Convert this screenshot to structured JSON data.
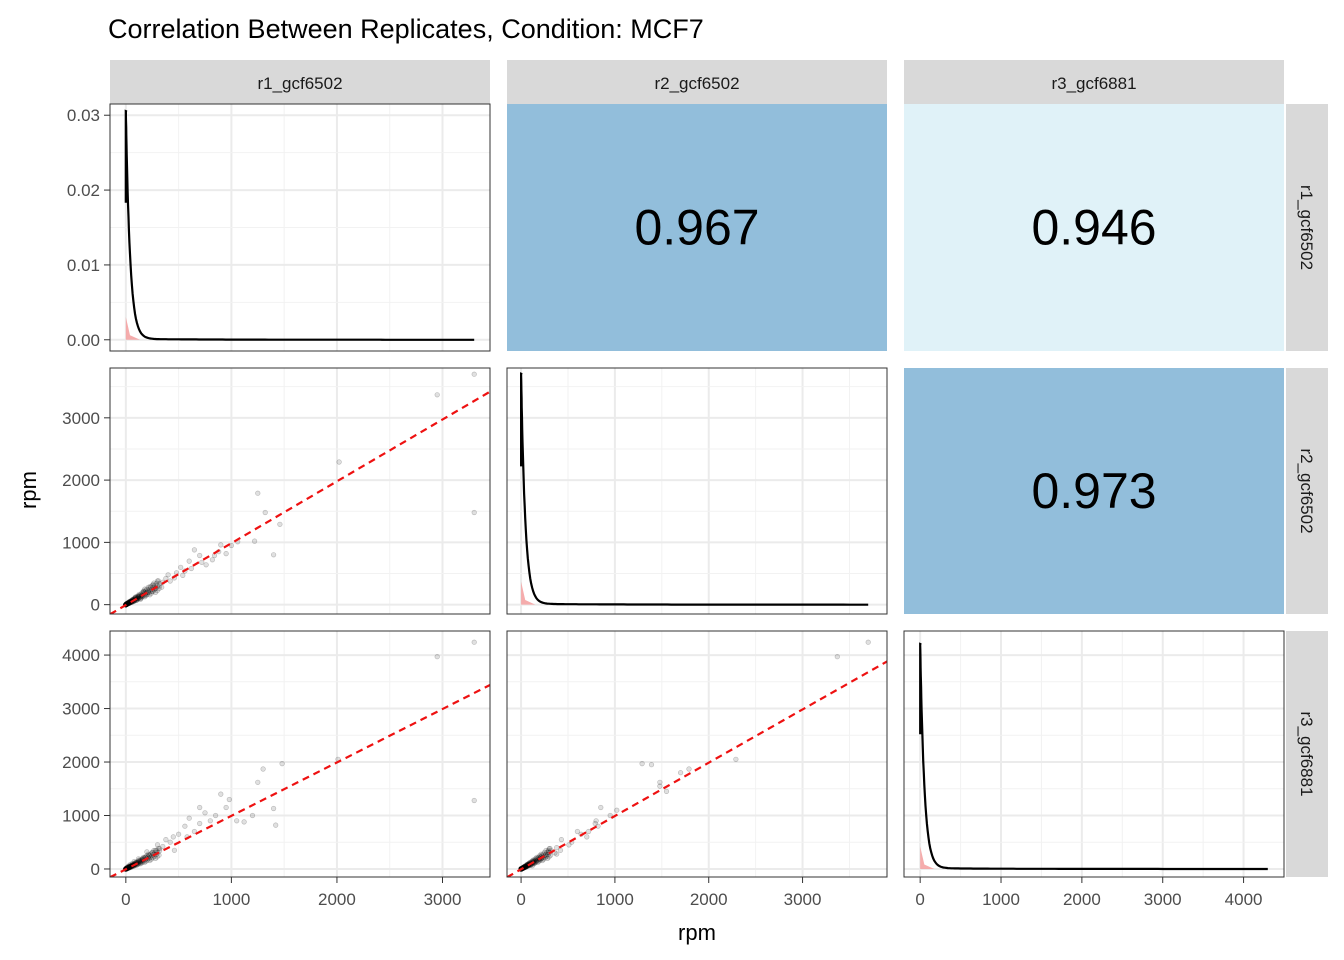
{
  "chart_data": {
    "type": "scatter-matrix",
    "title": "Correlation Between Replicates, Condition: MCF7",
    "xlabel": "rpm",
    "ylabel": "rpm",
    "columns": [
      "r1_gcf6502",
      "r2_gcf6502",
      "r3_gcf6881"
    ],
    "rows": [
      "r1_gcf6502",
      "r2_gcf6502",
      "r3_gcf6881"
    ],
    "x_axes": [
      {
        "range": [
          -150,
          3450
        ],
        "ticks": [
          0,
          1000,
          2000,
          3000
        ],
        "tick_labels": [
          "0",
          "1000",
          "2000",
          "3000"
        ]
      },
      {
        "range": [
          -150,
          3900
        ],
        "ticks": [
          0,
          1000,
          2000,
          3000
        ],
        "tick_labels": [
          "0",
          "1000",
          "2000",
          "3000"
        ]
      },
      {
        "range": [
          -200,
          4500
        ],
        "ticks": [
          0,
          1000,
          2000,
          3000,
          4000
        ],
        "tick_labels": [
          "0",
          "1000",
          "2000",
          "3000",
          "4000"
        ]
      }
    ],
    "y_axes": [
      {
        "range": [
          -0.0015,
          0.0315
        ],
        "ticks": [
          0,
          0.01,
          0.02,
          0.03
        ],
        "tick_labels": [
          "0.00",
          "0.01",
          "0.02",
          "0.03"
        ]
      },
      {
        "range": [
          -150,
          3800
        ],
        "ticks": [
          0,
          1000,
          2000,
          3000
        ],
        "tick_labels": [
          "0",
          "1000",
          "2000",
          "3000"
        ]
      },
      {
        "range": [
          -150,
          4450
        ],
        "ticks": [
          0,
          1000,
          2000,
          3000,
          4000
        ],
        "tick_labels": [
          "0",
          "1000",
          "2000",
          "3000",
          "4000"
        ]
      }
    ],
    "correlations": [
      {
        "row": 0,
        "col": 1,
        "value": "0.967",
        "fill": "#92bedb"
      },
      {
        "row": 0,
        "col": 2,
        "value": "0.946",
        "fill": "#e0f2f8"
      },
      {
        "row": 1,
        "col": 2,
        "value": "0.973",
        "fill": "#92bedb"
      }
    ],
    "density": [
      {
        "row": 0,
        "col": 0,
        "max_x": 3300,
        "peak": 0.0305
      },
      {
        "row": 1,
        "col": 1,
        "max_x": 3700,
        "peak": 3700
      },
      {
        "row": 2,
        "col": 2,
        "max_x": 4300,
        "peak": 4200
      }
    ],
    "scatter": [
      {
        "row": 1,
        "col": 0,
        "fit": [
          [
            -150,
            -155
          ],
          [
            3450,
            3420
          ]
        ],
        "points": [
          [
            3300,
            3700
          ],
          [
            2950,
            3370
          ],
          [
            3300,
            1480
          ],
          [
            2020,
            2290
          ],
          [
            1250,
            1790
          ],
          [
            1320,
            1480
          ],
          [
            1460,
            1290
          ],
          [
            1220,
            1020
          ],
          [
            1400,
            800
          ],
          [
            1000,
            950
          ],
          [
            950,
            820
          ],
          [
            880,
            850
          ],
          [
            820,
            720
          ],
          [
            760,
            640
          ],
          [
            700,
            790
          ],
          [
            650,
            880
          ],
          [
            600,
            700
          ],
          [
            560,
            540
          ],
          [
            520,
            600
          ],
          [
            480,
            510
          ],
          [
            420,
            380
          ],
          [
            460,
            430
          ],
          [
            380,
            420
          ],
          [
            350,
            360
          ],
          [
            320,
            300
          ],
          [
            300,
            380
          ],
          [
            280,
            260
          ],
          [
            250,
            220
          ],
          [
            230,
            290
          ],
          [
            210,
            200
          ],
          [
            190,
            160
          ],
          [
            170,
            210
          ],
          [
            150,
            140
          ],
          [
            140,
            90
          ],
          [
            120,
            130
          ],
          [
            110,
            100
          ],
          [
            100,
            70
          ],
          [
            90,
            120
          ],
          [
            80,
            60
          ],
          [
            70,
            80
          ],
          [
            60,
            40
          ],
          [
            50,
            55
          ],
          [
            40,
            30
          ],
          [
            35,
            50
          ],
          [
            30,
            20
          ],
          [
            25,
            35
          ],
          [
            20,
            15
          ],
          [
            15,
            25
          ],
          [
            10,
            10
          ],
          [
            8,
            20
          ],
          [
            5,
            5
          ],
          [
            3,
            8
          ],
          [
            180,
            250
          ],
          [
            260,
            320
          ],
          [
            340,
            280
          ],
          [
            400,
            480
          ],
          [
            540,
            470
          ],
          [
            620,
            580
          ],
          [
            720,
            680
          ],
          [
            840,
            790
          ],
          [
            900,
            960
          ],
          [
            1060,
            1010
          ]
        ]
      },
      {
        "row": 2,
        "col": 0,
        "fit": [
          [
            -150,
            -155
          ],
          [
            3450,
            3440
          ]
        ],
        "points": [
          [
            3300,
            4240
          ],
          [
            2950,
            3970
          ],
          [
            3300,
            1280
          ],
          [
            2010,
            2050
          ],
          [
            1480,
            1970
          ],
          [
            1300,
            1870
          ],
          [
            1250,
            1620
          ],
          [
            1400,
            1130
          ],
          [
            1420,
            820
          ],
          [
            1200,
            1000
          ],
          [
            1050,
            900
          ],
          [
            950,
            1150
          ],
          [
            900,
            1400
          ],
          [
            850,
            1000
          ],
          [
            800,
            900
          ],
          [
            750,
            1050
          ],
          [
            700,
            850
          ],
          [
            650,
            700
          ],
          [
            600,
            950
          ],
          [
            560,
            800
          ],
          [
            500,
            650
          ],
          [
            450,
            600
          ],
          [
            420,
            500
          ],
          [
            380,
            550
          ],
          [
            350,
            420
          ],
          [
            320,
            380
          ],
          [
            300,
            450
          ],
          [
            280,
            350
          ],
          [
            250,
            300
          ],
          [
            220,
            260
          ],
          [
            200,
            320
          ],
          [
            180,
            220
          ],
          [
            160,
            180
          ],
          [
            140,
            150
          ],
          [
            120,
            190
          ],
          [
            100,
            120
          ],
          [
            90,
            90
          ],
          [
            80,
            140
          ],
          [
            70,
            70
          ],
          [
            60,
            100
          ],
          [
            50,
            50
          ],
          [
            40,
            80
          ],
          [
            35,
            40
          ],
          [
            30,
            60
          ],
          [
            25,
            30
          ],
          [
            20,
            45
          ],
          [
            15,
            20
          ],
          [
            10,
            25
          ],
          [
            8,
            10
          ],
          [
            5,
            15
          ],
          [
            3,
            5
          ],
          [
            700,
            1150
          ],
          [
            980,
            1300
          ],
          [
            1120,
            880
          ],
          [
            580,
            600
          ],
          [
            460,
            350
          ]
        ]
      },
      {
        "row": 2,
        "col": 1,
        "fit": [
          [
            -150,
            -155
          ],
          [
            3900,
            3880
          ]
        ],
        "points": [
          [
            3700,
            4240
          ],
          [
            3370,
            3970
          ],
          [
            2290,
            2050
          ],
          [
            1790,
            1870
          ],
          [
            1480,
            1620
          ],
          [
            1290,
            1970
          ],
          [
            1480,
            1550
          ],
          [
            1020,
            1100
          ],
          [
            1390,
            1950
          ],
          [
            800,
            900
          ],
          [
            950,
            1000
          ],
          [
            820,
            800
          ],
          [
            850,
            1150
          ],
          [
            720,
            700
          ],
          [
            640,
            650
          ],
          [
            790,
            850
          ],
          [
            700,
            600
          ],
          [
            540,
            500
          ],
          [
            600,
            700
          ],
          [
            510,
            450
          ],
          [
            380,
            400
          ],
          [
            430,
            550
          ],
          [
            420,
            350
          ],
          [
            360,
            300
          ],
          [
            300,
            380
          ],
          [
            380,
            280
          ],
          [
            260,
            250
          ],
          [
            220,
            200
          ],
          [
            290,
            320
          ],
          [
            200,
            180
          ],
          [
            160,
            150
          ],
          [
            210,
            230
          ],
          [
            140,
            120
          ],
          [
            90,
            100
          ],
          [
            130,
            140
          ],
          [
            100,
            80
          ],
          [
            70,
            90
          ],
          [
            120,
            60
          ],
          [
            60,
            50
          ],
          [
            80,
            70
          ],
          [
            40,
            35
          ],
          [
            55,
            45
          ],
          [
            30,
            25
          ],
          [
            50,
            40
          ],
          [
            20,
            18
          ],
          [
            35,
            30
          ],
          [
            15,
            12
          ],
          [
            25,
            20
          ],
          [
            10,
            8
          ],
          [
            20,
            15
          ],
          [
            5,
            4
          ],
          [
            8,
            6
          ],
          [
            1550,
            1450
          ],
          [
            1700,
            1800
          ]
        ]
      }
    ]
  }
}
